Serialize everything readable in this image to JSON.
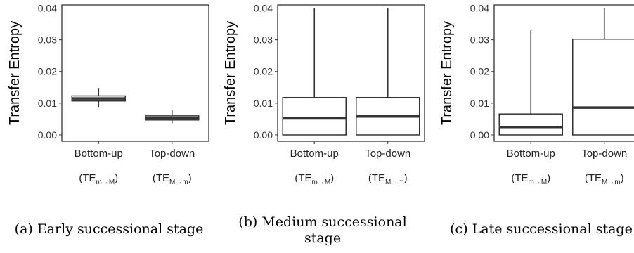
{
  "chart_data": [
    {
      "type": "box",
      "ylabel": "Transfer Entropy",
      "ylim": [
        -0.002,
        0.041
      ],
      "yticks": [
        "0.00",
        "0.01",
        "0.02",
        "0.03",
        "0.04"
      ],
      "categories": [
        {
          "label": "Bottom-up",
          "sub": {
            "open": "(TE",
            "sub": "m→M",
            "close": ")"
          }
        },
        {
          "label": "Top-down",
          "sub": {
            "open": "(TE",
            "sub": "M→m",
            "close": ")"
          }
        }
      ],
      "boxes": [
        {
          "min": 0.0088,
          "q1": 0.0107,
          "median": 0.0115,
          "q3": 0.0123,
          "max": 0.0148
        },
        {
          "min": 0.0037,
          "q1": 0.0047,
          "median": 0.0053,
          "q3": 0.006,
          "max": 0.008
        }
      ],
      "caption": [
        "(a) Early successional stage"
      ]
    },
    {
      "type": "box",
      "ylabel": "Transfer Entropy",
      "ylim": [
        -0.002,
        0.041
      ],
      "yticks": [
        "0.00",
        "0.01",
        "0.02",
        "0.03",
        "0.04"
      ],
      "categories": [
        {
          "label": "Bottom-up",
          "sub": {
            "open": "(TE",
            "sub": "m→M",
            "close": ")"
          }
        },
        {
          "label": "Top-down",
          "sub": {
            "open": "(TE",
            "sub": "M→m",
            "close": ")"
          }
        }
      ],
      "boxes": [
        {
          "min": 0.0,
          "q1": 0.0,
          "median": 0.0052,
          "q3": 0.0118,
          "max": 0.04
        },
        {
          "min": 0.0,
          "q1": 0.0,
          "median": 0.0058,
          "q3": 0.0118,
          "max": 0.04
        }
      ],
      "caption": [
        "(b) Medium successional",
        "stage"
      ]
    },
    {
      "type": "box",
      "ylabel": "Transfer Entropy",
      "ylim": [
        -0.002,
        0.041
      ],
      "yticks": [
        "0.00",
        "0.01",
        "0.02",
        "0.03",
        "0.04"
      ],
      "categories": [
        {
          "label": "Bottom-up",
          "sub": {
            "open": "(TE",
            "sub": "m→M",
            "close": ")"
          }
        },
        {
          "label": "Top-down",
          "sub": {
            "open": "(TE",
            "sub": "M→m",
            "close": ")"
          }
        }
      ],
      "boxes": [
        {
          "min": 0.0,
          "q1": 0.0,
          "median": 0.0025,
          "q3": 0.0066,
          "max": 0.033
        },
        {
          "min": 0.0,
          "q1": 0.0,
          "median": 0.0086,
          "q3": 0.0302,
          "max": 0.04
        }
      ],
      "caption": [
        "(c) Late successional stage"
      ]
    }
  ]
}
